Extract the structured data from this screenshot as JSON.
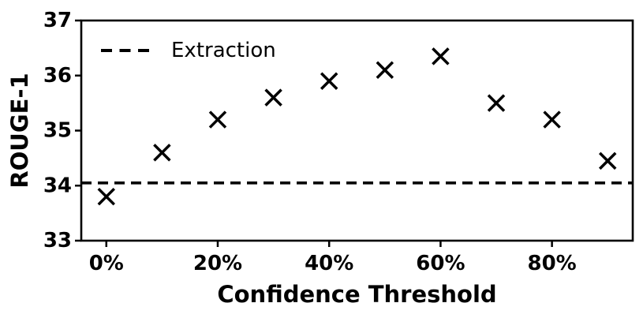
{
  "chart_data": {
    "type": "scatter",
    "title": "",
    "xlabel": "Confidence Threshold",
    "ylabel": "ROUGE-1",
    "x": [
      0,
      10,
      20,
      30,
      40,
      50,
      60,
      70,
      80,
      90
    ],
    "x_unit": "%",
    "series": [
      {
        "marker": "x",
        "color": "#000000",
        "values": [
          33.8,
          34.6,
          35.2,
          35.6,
          35.9,
          36.1,
          36.35,
          35.5,
          35.2,
          34.45
        ]
      }
    ],
    "baseline": {
      "label": "Extraction",
      "value": 34.05,
      "style": "dashed",
      "color": "#000000"
    },
    "legend": {
      "entries": [
        {
          "label": "Extraction",
          "line_style": "dashed"
        }
      ],
      "position": "upper-left",
      "frame": false
    },
    "xlim": [
      -4.5,
      94.5
    ],
    "ylim": [
      33,
      37
    ],
    "xticks": {
      "values": [
        0,
        20,
        40,
        60,
        80
      ],
      "labels": [
        "0%",
        "20%",
        "40%",
        "60%",
        "80%"
      ]
    },
    "yticks": {
      "values": [
        33,
        34,
        35,
        36,
        37
      ],
      "labels": [
        "33",
        "34",
        "35",
        "36",
        "37"
      ]
    },
    "grid": false,
    "colors": {
      "background": "#ffffff",
      "foreground": "#000000"
    }
  }
}
